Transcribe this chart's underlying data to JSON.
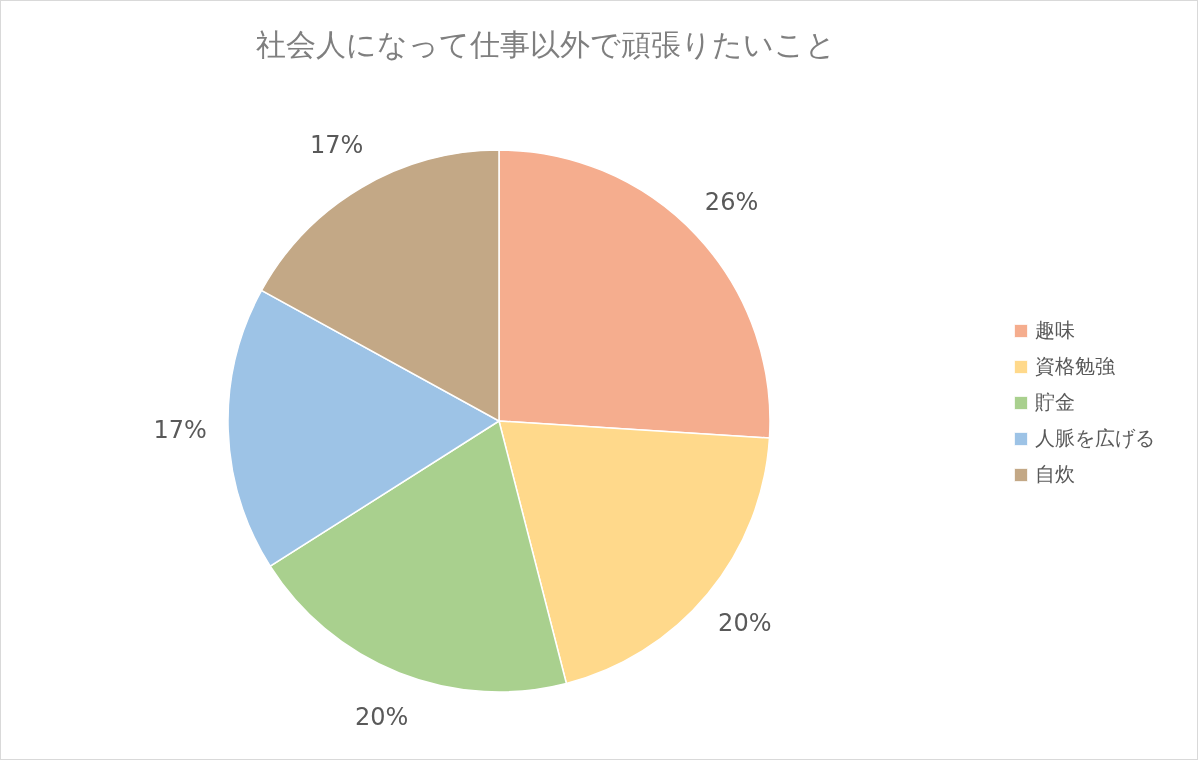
{
  "chart_data": {
    "type": "pie",
    "title": "社会人になって仕事以外で頑張りたいこと",
    "categories": [
      "趣味",
      "資格勉強",
      "貯金",
      "人脈を広げる",
      "自炊"
    ],
    "values": [
      26,
      20,
      20,
      17,
      17
    ],
    "value_labels": [
      "26%",
      "20%",
      "20%",
      "17%",
      "17%"
    ],
    "colors": [
      "#f5ad8e",
      "#ffd98b",
      "#a9d08e",
      "#9dc3e6",
      "#c3a886"
    ],
    "legend": "right"
  }
}
